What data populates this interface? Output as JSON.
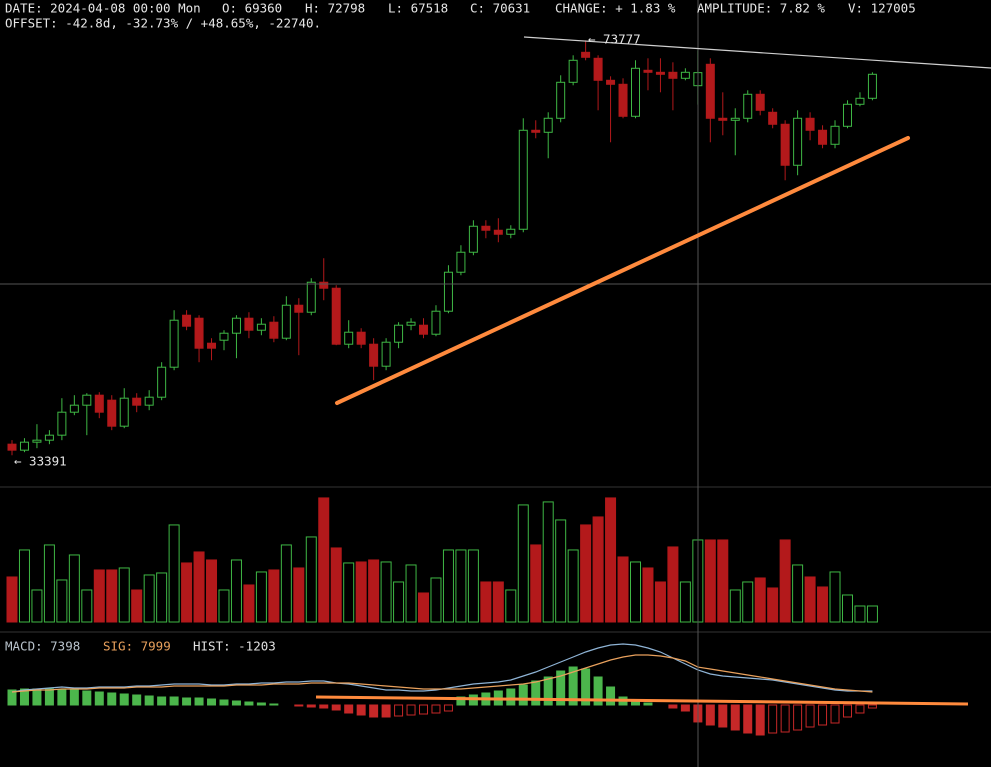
{
  "chart_data": {
    "type": "candlestick",
    "header": [
      "DATE: 2024-04-08 00:00 Mon",
      "O: 69360",
      "H: 72798",
      "L: 67518",
      "C: 70631",
      "CHANGE: + 1.83 %",
      "AMPLITUDE: 7.82 %",
      "V: 127005"
    ],
    "offset": "OFFSET: -42.8d, -32.73% / +48.65%, -22740.",
    "annotations": [
      "← 73777",
      "← 33391"
    ],
    "ylim": [
      30300,
      77700
    ],
    "up_color": "#3fb845",
    "down_color": "#b3191b",
    "candles": {
      "open": [
        34468,
        33884,
        34663,
        34857,
        35344,
        37581,
        38263,
        39236,
        38749,
        36219,
        38944,
        38263,
        39041,
        41960,
        47019,
        46728,
        44295,
        44587,
        45268,
        46728,
        45560,
        46338,
        44782,
        47992,
        47311,
        50230,
        49647,
        44198,
        45365,
        44198,
        42057,
        44392,
        46047,
        46047,
        45171,
        47409,
        51204,
        53150,
        55679,
        55290,
        54901,
        55387,
        65020,
        64825,
        66188,
        69690,
        72609,
        72026,
        69885,
        69496,
        66382,
        70858,
        70663,
        70663,
        70080,
        69360,
        71442,
        66188,
        65993,
        66188,
        68523,
        66771,
        65604,
        61615,
        66188,
        65020,
        63658,
        65409,
        67550,
        68134
      ],
      "high": [
        34857,
        35052,
        36414,
        35830,
        38944,
        39236,
        39430,
        39527,
        39236,
        39917,
        39430,
        39722,
        42447,
        47506,
        47506,
        47019,
        44782,
        45560,
        47019,
        47311,
        46728,
        46922,
        48868,
        48674,
        50620,
        52566,
        49939,
        46533,
        45754,
        44782,
        44782,
        46338,
        46728,
        46728,
        47992,
        51885,
        53830,
        56263,
        56263,
        56458,
        55777,
        66188,
        65993,
        66771,
        70372,
        72318,
        73777,
        72318,
        70274,
        70080,
        71831,
        72026,
        72026,
        71636,
        71053,
        72798,
        72026,
        68717,
        67161,
        68912,
        68912,
        67161,
        65993,
        66966,
        66771,
        65507,
        65993,
        67939,
        68717,
        70663
      ],
      "low": [
        33391,
        33690,
        34079,
        34468,
        34857,
        37289,
        35344,
        36998,
        35830,
        36025,
        37581,
        37776,
        38749,
        41668,
        45560,
        42447,
        42641,
        43614,
        42836,
        44782,
        45073,
        44392,
        44587,
        43128,
        47019,
        48479,
        44101,
        43809,
        43809,
        40695,
        41668,
        43809,
        45560,
        44782,
        44976,
        47214,
        50912,
        52858,
        54512,
        54122,
        54512,
        55095,
        64242,
        62296,
        65798,
        69399,
        71831,
        66966,
        63852,
        66188,
        66188,
        68912,
        68717,
        66966,
        69885,
        67518,
        63852,
        64534,
        62588,
        65798,
        66479,
        65214,
        60155,
        60642,
        64047,
        63270,
        63270,
        65214,
        67355,
        67939
      ],
      "close": [
        33884,
        34663,
        34857,
        35344,
        37581,
        38263,
        39236,
        37581,
        36219,
        38944,
        38263,
        39041,
        41960,
        46533,
        45949,
        43809,
        43809,
        45268,
        46728,
        45560,
        46144,
        44782,
        47992,
        47311,
        50230,
        49647,
        44198,
        45365,
        44198,
        42057,
        44392,
        46047,
        46338,
        45171,
        47409,
        51204,
        53150,
        55679,
        55290,
        54901,
        55387,
        65020,
        64825,
        66188,
        69690,
        71831,
        72123,
        69885,
        69496,
        66382,
        71053,
        70663,
        70469,
        70080,
        70663,
        70631,
        66188,
        65993,
        66188,
        68523,
        66966,
        65604,
        61615,
        66188,
        65020,
        63658,
        65409,
        67550,
        68134,
        70469
      ]
    },
    "volume": {
      "ylim": [
        0,
        209000
      ],
      "values": [
        69705,
        111528,
        49568,
        119273,
        65058,
        103783,
        49568,
        80548,
        80548,
        83646,
        49568,
        72803,
        75901,
        150253,
        91391,
        108430,
        96038,
        49568,
        96038,
        57313,
        77450,
        80548,
        119273,
        83646,
        131665,
        192076,
        114626,
        91391,
        92940,
        96038,
        92940,
        61960,
        88293,
        44921,
        68156,
        111528,
        111528,
        111528,
        61960,
        61960,
        49568,
        181233,
        119273,
        185880,
        157998,
        111528,
        150253,
        162645,
        192076,
        100685,
        92940,
        83646,
        61960,
        116175,
        61960,
        127005,
        127000,
        127000,
        49568,
        61960,
        68156,
        52666,
        127018,
        88293,
        69705,
        54215,
        77450,
        41823,
        24784,
        24784
      ]
    },
    "macd": {
      "legend": [
        {
          "text": "MACD: 7398",
          "color": "#b9c3cc"
        },
        {
          "text": "SIG: 7999",
          "color": "#e9a15d"
        },
        {
          "text": "HIST: -1203",
          "color": "#e0e0e0"
        }
      ],
      "ylim": [
        -13082,
        15403
      ],
      "series": [
        {
          "color": "#8fb4d6",
          "values": [
            2743,
            3165,
            3376,
            3587,
            3798,
            3587,
            3587,
            3798,
            3798,
            3798,
            4009,
            4009,
            4220,
            4431,
            4431,
            4431,
            4220,
            4220,
            4431,
            4431,
            4642,
            4642,
            4853,
            4853,
            5064,
            5064,
            4642,
            4431,
            4009,
            3587,
            3165,
            3165,
            2954,
            2954,
            3165,
            3587,
            4009,
            4431,
            4642,
            4853,
            5275,
            6119,
            6963,
            8018,
            9073,
            10128,
            11183,
            12027,
            12660,
            12871,
            12660,
            12027,
            11183,
            9917,
            8651,
            7398,
            6541,
            6119,
            5908,
            5697,
            5486,
            5275,
            4853,
            4431,
            4009,
            3587,
            3165,
            2954,
            2954,
            2954
          ]
        },
        {
          "color": "#e9a15d",
          "values": [
            2743,
            2954,
            3165,
            3165,
            3376,
            3376,
            3376,
            3587,
            3587,
            3587,
            3798,
            3798,
            3798,
            4009,
            4009,
            4009,
            4009,
            4009,
            4220,
            4220,
            4220,
            4431,
            4431,
            4431,
            4642,
            4642,
            4642,
            4642,
            4431,
            4220,
            4009,
            3798,
            3587,
            3376,
            3376,
            3376,
            3376,
            3587,
            3798,
            4009,
            4220,
            4431,
            4853,
            5486,
            6119,
            6963,
            7807,
            8651,
            9495,
            10128,
            10550,
            10550,
            10339,
            9917,
            9284,
            7999,
            7596,
            7174,
            6752,
            6330,
            5908,
            5486,
            5064,
            4642,
            4220,
            3798,
            3376,
            3165,
            2954,
            2743
          ]
        }
      ],
      "hist": {
        "ylim": [
          -4402,
          5183
        ],
        "up_color": "#4cb64c",
        "down_color": "#c62828",
        "values": [
          1065,
          1136,
          1136,
          1136,
          1065,
          1065,
          994,
          923,
          852,
          781,
          710,
          639,
          568,
          568,
          497,
          497,
          426,
          355,
          284,
          213,
          142,
          71,
          0,
          -71,
          -142,
          -213,
          -355,
          -568,
          -710,
          -852,
          -852,
          -781,
          -710,
          -639,
          -568,
          -426,
          568,
          710,
          852,
          994,
          1136,
          1420,
          1704,
          1988,
          2414,
          2698,
          2556,
          1988,
          1278,
          568,
          284,
          142,
          0,
          -213,
          -426,
          -1203,
          -1420,
          -1562,
          -1775,
          -1988,
          -2130,
          -1988,
          -1917,
          -1775,
          -1562,
          -1420,
          -1278,
          -852,
          -568,
          -213
        ]
      }
    }
  }
}
